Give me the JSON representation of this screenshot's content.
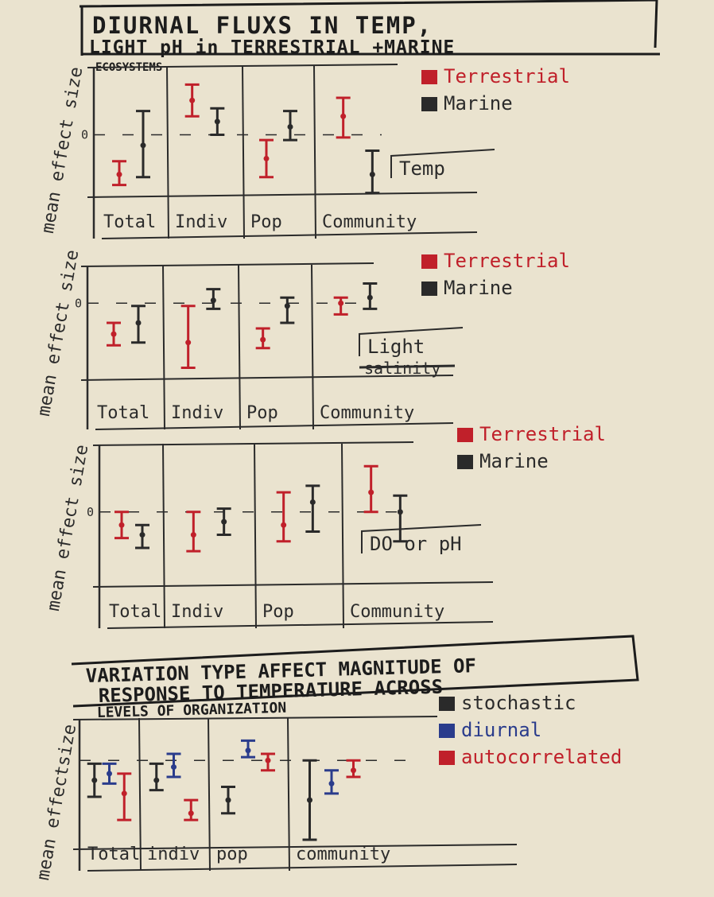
{
  "page_title": {
    "line1": "DIURNAL FLUXS IN TEMP,",
    "line2": "LIGHT pH in TERRESTRIAL +MARINE",
    "line3": "ECOSYSTEMS"
  },
  "bottom_title": {
    "line1": "VARIATION TYPE AFFECT MAGNITUDE OF",
    "line2": "RESPONSE TO TEMPERATURE ACROSS",
    "line3": "LEVELS OF ORGANIZATION"
  },
  "colors": {
    "terrestrial": "#c0202a",
    "marine": "#2a2a2a",
    "stochastic": "#2a2a2a",
    "diurnal": "#2a3c8c",
    "autocorrelated": "#c0202a",
    "ink": "#2b2b2b",
    "paper": "#eae3cf"
  },
  "chart_data": [
    {
      "type": "errorbar",
      "tag": "Temp",
      "ylabel": "mean effect size",
      "zero_label": "0",
      "categories": [
        "Total",
        "Indiv",
        "Pop",
        "Community"
      ],
      "ylim": [
        -1,
        1
      ],
      "legend_position": "top-right",
      "series": [
        {
          "name": "Terrestrial",
          "color": "#c0202a",
          "mean": [
            -0.75,
            0.65,
            -0.45,
            0.35
          ],
          "low": [
            -0.95,
            0.35,
            -0.8,
            -0.05
          ],
          "high": [
            -0.5,
            0.95,
            -0.1,
            0.7
          ]
        },
        {
          "name": "Marine",
          "color": "#2a2a2a",
          "mean": [
            -0.2,
            0.25,
            0.15,
            -0.75
          ],
          "low": [
            -0.8,
            0.0,
            -0.1,
            -1.1
          ],
          "high": [
            0.45,
            0.5,
            0.45,
            -0.3
          ]
        }
      ]
    },
    {
      "type": "errorbar",
      "tag": "Light",
      "struck_tag": "salinity",
      "ylabel": "mean effect size",
      "zero_label": "0",
      "categories": [
        "Total",
        "Indiv",
        "Pop",
        "Community"
      ],
      "ylim": [
        -1.2,
        0.4
      ],
      "legend_position": "top-right",
      "series": [
        {
          "name": "Terrestrial",
          "color": "#c0202a",
          "mean": [
            -0.55,
            -0.7,
            -0.65,
            0.0
          ],
          "low": [
            -0.75,
            -1.15,
            -0.8,
            -0.2
          ],
          "high": [
            -0.35,
            -0.05,
            -0.45,
            0.1
          ]
        },
        {
          "name": "Marine",
          "color": "#2a2a2a",
          "mean": [
            -0.35,
            0.05,
            -0.05,
            0.1
          ],
          "low": [
            -0.7,
            -0.1,
            -0.35,
            -0.1
          ],
          "high": [
            -0.05,
            0.25,
            0.1,
            0.35
          ]
        }
      ]
    },
    {
      "type": "errorbar",
      "tag": "DO or pH",
      "ylabel": "mean effect size",
      "zero_label": "0",
      "categories": [
        "Total",
        "Indiv",
        "Pop",
        "Community"
      ],
      "ylim": [
        -1,
        0.8
      ],
      "legend_position": "top-right",
      "series": [
        {
          "name": "Terrestrial",
          "color": "#c0202a",
          "mean": [
            -0.2,
            -0.35,
            -0.2,
            0.3
          ],
          "low": [
            -0.4,
            -0.6,
            -0.45,
            0.0
          ],
          "high": [
            0.0,
            0.0,
            0.3,
            0.7
          ]
        },
        {
          "name": "Marine",
          "color": "#2a2a2a",
          "mean": [
            -0.35,
            -0.15,
            0.15,
            0.0
          ],
          "low": [
            -0.55,
            -0.35,
            -0.3,
            -0.45
          ],
          "high": [
            -0.2,
            0.05,
            0.4,
            0.25
          ]
        }
      ]
    },
    {
      "type": "errorbar",
      "ylabel": "mean effectsize",
      "categories": [
        "Total",
        "indiv",
        "pop",
        "community"
      ],
      "ylim": [
        -1.2,
        0.4
      ],
      "legend_position": "top-right",
      "series": [
        {
          "name": "stochastic",
          "color": "#2a2a2a",
          "mean": [
            -0.3,
            -0.3,
            -0.6,
            -0.6
          ],
          "low": [
            -0.55,
            -0.45,
            -0.8,
            -1.2
          ],
          "high": [
            -0.05,
            -0.05,
            -0.4,
            0.0
          ]
        },
        {
          "name": "diurnal",
          "color": "#2a3c8c",
          "mean": [
            -0.2,
            -0.1,
            0.15,
            -0.35
          ],
          "low": [
            -0.35,
            -0.25,
            0.05,
            -0.5
          ],
          "high": [
            -0.05,
            0.1,
            0.3,
            -0.15
          ]
        },
        {
          "name": "autocorrelated",
          "color": "#c0202a",
          "mean": [
            -0.5,
            -0.8,
            0.0,
            -0.15
          ],
          "low": [
            -0.9,
            -0.9,
            -0.15,
            -0.25
          ],
          "high": [
            -0.2,
            -0.6,
            0.1,
            0.0
          ]
        }
      ]
    }
  ]
}
